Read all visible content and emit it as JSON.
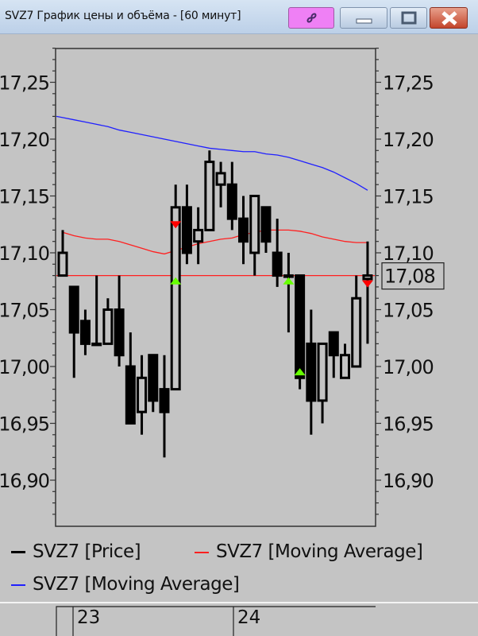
{
  "window": {
    "title": "SVZ7 График цены и объёма - [60 минут]",
    "buttons": {
      "link": "link-icon",
      "minimize": "minimize-icon",
      "maximize": "maximize-icon",
      "close": "close-icon"
    }
  },
  "legend": [
    {
      "label": "SVZ7 [Price]",
      "color": "#000000"
    },
    {
      "label": "SVZ7 [Moving Average]",
      "color": "#ff2020"
    },
    {
      "label": "SVZ7 [Moving Average]",
      "color": "#2020ff"
    }
  ],
  "time_axis": {
    "labels": [
      "23",
      "24"
    ]
  },
  "chart_data": {
    "type": "candlestick",
    "ylim": [
      16.87,
      17.29
    ],
    "y_ticks": [
      "17,25",
      "17,20",
      "17,15",
      "17,10",
      "17,05",
      "17,00",
      "16,95",
      "16,90"
    ],
    "y_tick_values": [
      17.25,
      17.2,
      17.15,
      17.1,
      17.05,
      17.0,
      16.95,
      16.9
    ],
    "current_price_label": "17,08",
    "current_price": 17.08,
    "level_line": 17.08,
    "candles": [
      {
        "o": 17.08,
        "h": 17.12,
        "l": 17.08,
        "c": 17.1
      },
      {
        "o": 17.07,
        "h": 17.07,
        "l": 16.99,
        "c": 17.03
      },
      {
        "o": 17.04,
        "h": 17.05,
        "l": 17.01,
        "c": 17.02
      },
      {
        "o": 17.02,
        "h": 17.08,
        "l": 17.02,
        "c": 17.02
      },
      {
        "o": 17.02,
        "h": 17.06,
        "l": 17.02,
        "c": 17.05
      },
      {
        "o": 17.05,
        "h": 17.08,
        "l": 17.0,
        "c": 17.01
      },
      {
        "o": 17.0,
        "h": 17.03,
        "l": 16.95,
        "c": 16.95
      },
      {
        "o": 16.96,
        "h": 17.01,
        "l": 16.94,
        "c": 16.99
      },
      {
        "o": 17.01,
        "h": 17.01,
        "l": 16.96,
        "c": 16.97
      },
      {
        "o": 16.98,
        "h": 17.01,
        "l": 16.92,
        "c": 16.96
      },
      {
        "o": 16.98,
        "h": 17.16,
        "l": 16.98,
        "c": 17.14
      },
      {
        "o": 17.14,
        "h": 17.16,
        "l": 17.09,
        "c": 17.1
      },
      {
        "o": 17.11,
        "h": 17.14,
        "l": 17.09,
        "c": 17.12
      },
      {
        "o": 17.12,
        "h": 17.19,
        "l": 17.12,
        "c": 17.18
      },
      {
        "o": 17.16,
        "h": 17.18,
        "l": 17.14,
        "c": 17.17
      },
      {
        "o": 17.16,
        "h": 17.18,
        "l": 17.12,
        "c": 17.13
      },
      {
        "o": 17.13,
        "h": 17.15,
        "l": 17.09,
        "c": 17.11
      },
      {
        "o": 17.1,
        "h": 17.15,
        "l": 17.08,
        "c": 17.15
      },
      {
        "o": 17.14,
        "h": 17.14,
        "l": 17.1,
        "c": 17.11
      },
      {
        "o": 17.1,
        "h": 17.13,
        "l": 17.07,
        "c": 17.08
      },
      {
        "o": 17.08,
        "h": 17.1,
        "l": 17.03,
        "c": 17.08
      },
      {
        "o": 17.08,
        "h": 17.08,
        "l": 16.98,
        "c": 16.99
      },
      {
        "o": 17.02,
        "h": 17.05,
        "l": 16.94,
        "c": 16.97
      },
      {
        "o": 16.97,
        "h": 17.02,
        "l": 16.95,
        "c": 17.02
      },
      {
        "o": 17.03,
        "h": 17.03,
        "l": 16.99,
        "c": 17.01
      },
      {
        "o": 16.99,
        "h": 17.02,
        "l": 16.99,
        "c": 17.01
      },
      {
        "o": 17.0,
        "h": 17.08,
        "l": 17.0,
        "c": 17.06
      },
      {
        "o": 17.077,
        "h": 17.11,
        "l": 17.02,
        "c": 17.08
      }
    ],
    "series": [
      {
        "name": "SVZ7 [Moving Average]",
        "color": "#ff2020",
        "values": [
          17.118,
          17.115,
          17.113,
          17.112,
          17.112,
          17.11,
          17.107,
          17.104,
          17.101,
          17.099,
          17.102,
          17.105,
          17.108,
          17.11,
          17.112,
          17.113,
          17.116,
          17.118,
          17.12,
          17.12,
          17.12,
          17.119,
          17.117,
          17.114,
          17.112,
          17.11,
          17.109,
          17.109
        ]
      },
      {
        "name": "SVZ7 [Moving Average]",
        "color": "#2020ff",
        "values": [
          17.219,
          17.217,
          17.215,
          17.213,
          17.211,
          17.208,
          17.206,
          17.204,
          17.202,
          17.2,
          17.198,
          17.196,
          17.194,
          17.192,
          17.191,
          17.19,
          17.189,
          17.189,
          17.187,
          17.186,
          17.184,
          17.181,
          17.178,
          17.175,
          17.171,
          17.166,
          17.161,
          17.155
        ]
      }
    ],
    "signals": [
      {
        "candle": 11,
        "type": "sell",
        "price": 17.125,
        "color": "#ff0000"
      },
      {
        "candle": 11,
        "type": "buy",
        "price": 17.075,
        "color": "#66ff00"
      },
      {
        "candle": 21,
        "type": "buy",
        "price": 17.075,
        "color": "#66ff00"
      },
      {
        "candle": 22,
        "type": "buy",
        "price": 16.995,
        "color": "#66ff00"
      },
      {
        "candle": 28,
        "type": "sell",
        "price": 17.073,
        "color": "#ff0000"
      }
    ]
  }
}
